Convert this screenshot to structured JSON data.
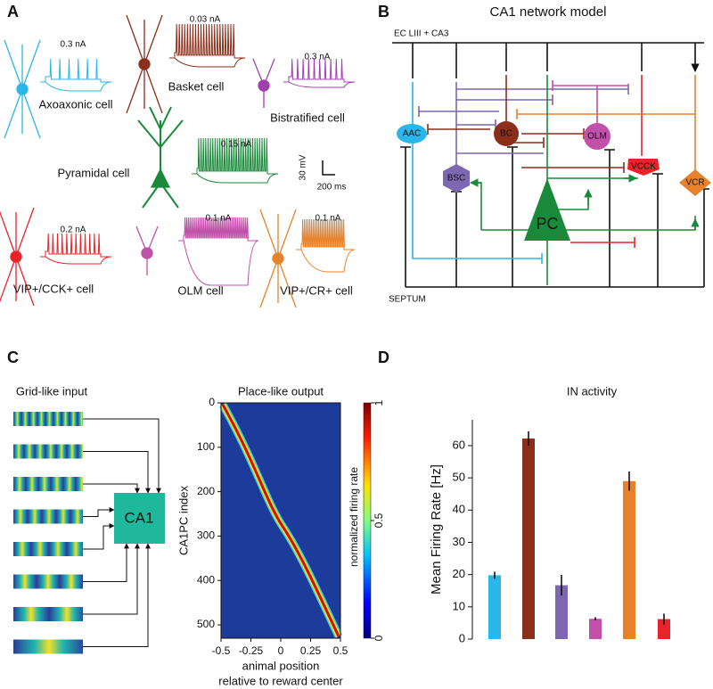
{
  "panel_a": {
    "letter": "A",
    "cells": [
      {
        "name": "Axoaxonic cell",
        "current": "0.3 nA"
      },
      {
        "name": "Basket cell",
        "current": "0.03 nA"
      },
      {
        "name": "Bistratified cell",
        "current": "0.3 nA"
      },
      {
        "name": "Pyramidal cell",
        "current": "0.15 nA"
      },
      {
        "name": "VIP+/CCK+ cell",
        "current": "0.2 nA"
      },
      {
        "name": "OLM cell",
        "current": "0.1 nA"
      },
      {
        "name": "VIP+/CR+ cell",
        "current": "0.1 nA"
      }
    ],
    "scale_bar": {
      "voltage": "30 mV",
      "time": "200 ms"
    }
  },
  "panel_b": {
    "letter": "B",
    "title": "CA1 network model",
    "input": "EC LIII + CA3",
    "septum": "SEPTUM",
    "nodes": [
      "AAC",
      "BSC",
      "BC",
      "OLM",
      "PC",
      "VCCK",
      "VCR"
    ]
  },
  "panel_c": {
    "letter": "C",
    "input_title": "Grid-like input",
    "hub": "CA1",
    "output_title": "Place-like output",
    "heatmap": {
      "ylabel": "CA1PC index",
      "xlabel": [
        "animal position",
        "relative to reward center"
      ],
      "ylim": [
        0,
        530
      ],
      "yticks": [
        0,
        100,
        200,
        300,
        400,
        500
      ],
      "xlim": [
        -0.5,
        0.5
      ],
      "xticks": [
        -0.5,
        -0.25,
        0,
        0.25,
        0.5
      ],
      "colorbar_label": "normalized firing rate",
      "colorbar_ticks": [
        0,
        0.5,
        1
      ]
    }
  },
  "panel_d": {
    "letter": "D"
  },
  "chart_data": {
    "type": "bar",
    "title": "IN activity",
    "ylabel": "Mean Firing Rate [Hz]",
    "categories": [
      null,
      null,
      null,
      null,
      null,
      null
    ],
    "values": [
      19.8,
      62.2,
      16.7,
      6.3,
      49,
      6.2
    ],
    "errors": [
      1.1,
      2.2,
      3.2,
      0.5,
      3,
      1.7
    ],
    "colors": [
      "#29b6e8",
      "#8b2e1a",
      "#7c67b0",
      "#c050a8",
      "#e8822a",
      "#e8232a"
    ],
    "ylim": [
      0,
      68
    ],
    "yticks": [
      0,
      10,
      20,
      30,
      40,
      50,
      60
    ]
  }
}
